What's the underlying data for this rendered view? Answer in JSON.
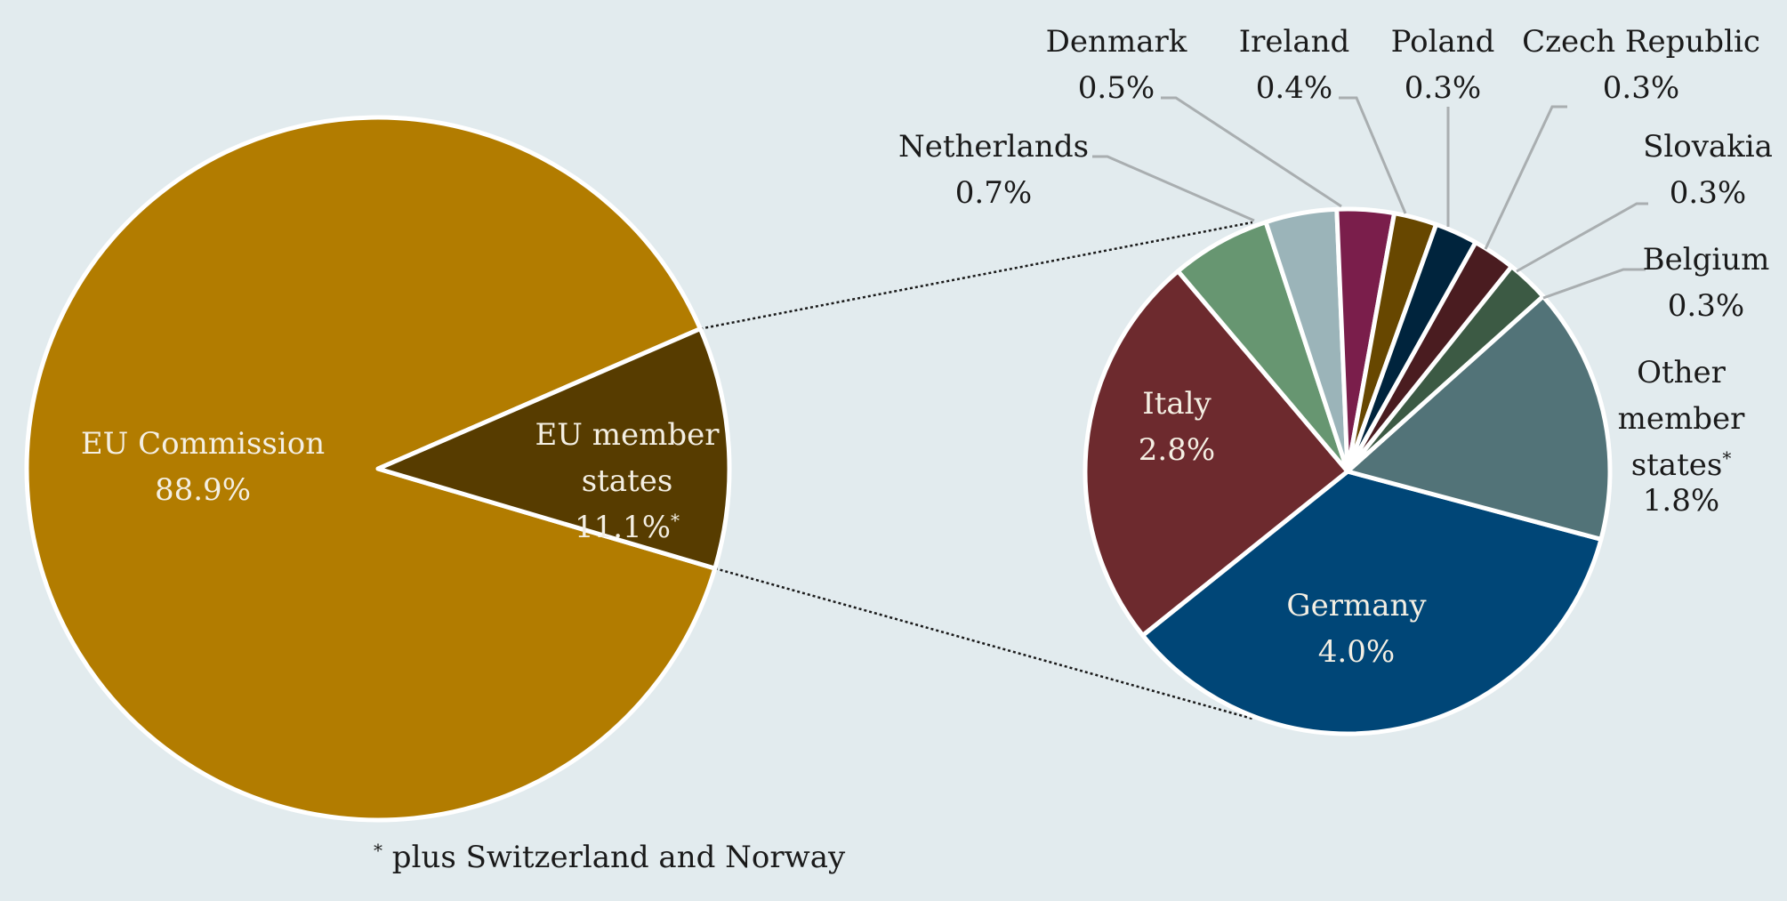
{
  "chart_data": [
    {
      "type": "pie",
      "title": "",
      "slices": [
        {
          "label": "EU Commission",
          "value": 88.9,
          "value_label": "88.9%",
          "color": "#b27c00"
        },
        {
          "label": "EU member states",
          "label_lines": [
            "EU member",
            "states"
          ],
          "value": 11.1,
          "value_label": "11.1%",
          "footnote_marker": "*",
          "color": "#573c00"
        }
      ],
      "footnote": {
        "marker": "*",
        "text": " plus Switzerland and Norway"
      }
    },
    {
      "type": "pie",
      "title": "",
      "breakdown_of": "EU member states",
      "slices": [
        {
          "label": "Germany",
          "value": 4.0,
          "value_label": "4.0%",
          "color": "#004677"
        },
        {
          "label": "Italy",
          "value": 2.8,
          "value_label": "2.8%",
          "color": "#6d2a2e"
        },
        {
          "label": "Netherlands",
          "value": 0.7,
          "value_label": "0.7%",
          "color": "#679671"
        },
        {
          "label": "Denmark",
          "value": 0.5,
          "value_label": "0.5%",
          "color": "#9bb4b9"
        },
        {
          "label": "Ireland",
          "value": 0.4,
          "value_label": "0.4%",
          "color": "#7a1e4b"
        },
        {
          "label": "Poland",
          "value": 0.3,
          "value_label": "0.3%",
          "color": "#674700"
        },
        {
          "label": "Czech Republic",
          "value": 0.3,
          "value_label": "0.3%",
          "color": "#00243d"
        },
        {
          "label": "Slovakia",
          "value": 0.3,
          "value_label": "0.3%",
          "color": "#4a1c20"
        },
        {
          "label": "Belgium",
          "value": 0.3,
          "value_label": "0.3%",
          "color": "#3c5a44"
        },
        {
          "label": "Other member states",
          "label_lines": [
            "Other",
            "member",
            "states"
          ],
          "value": 1.8,
          "value_label": "1.8%",
          "footnote_marker": "*",
          "color": "#527378"
        }
      ]
    }
  ]
}
